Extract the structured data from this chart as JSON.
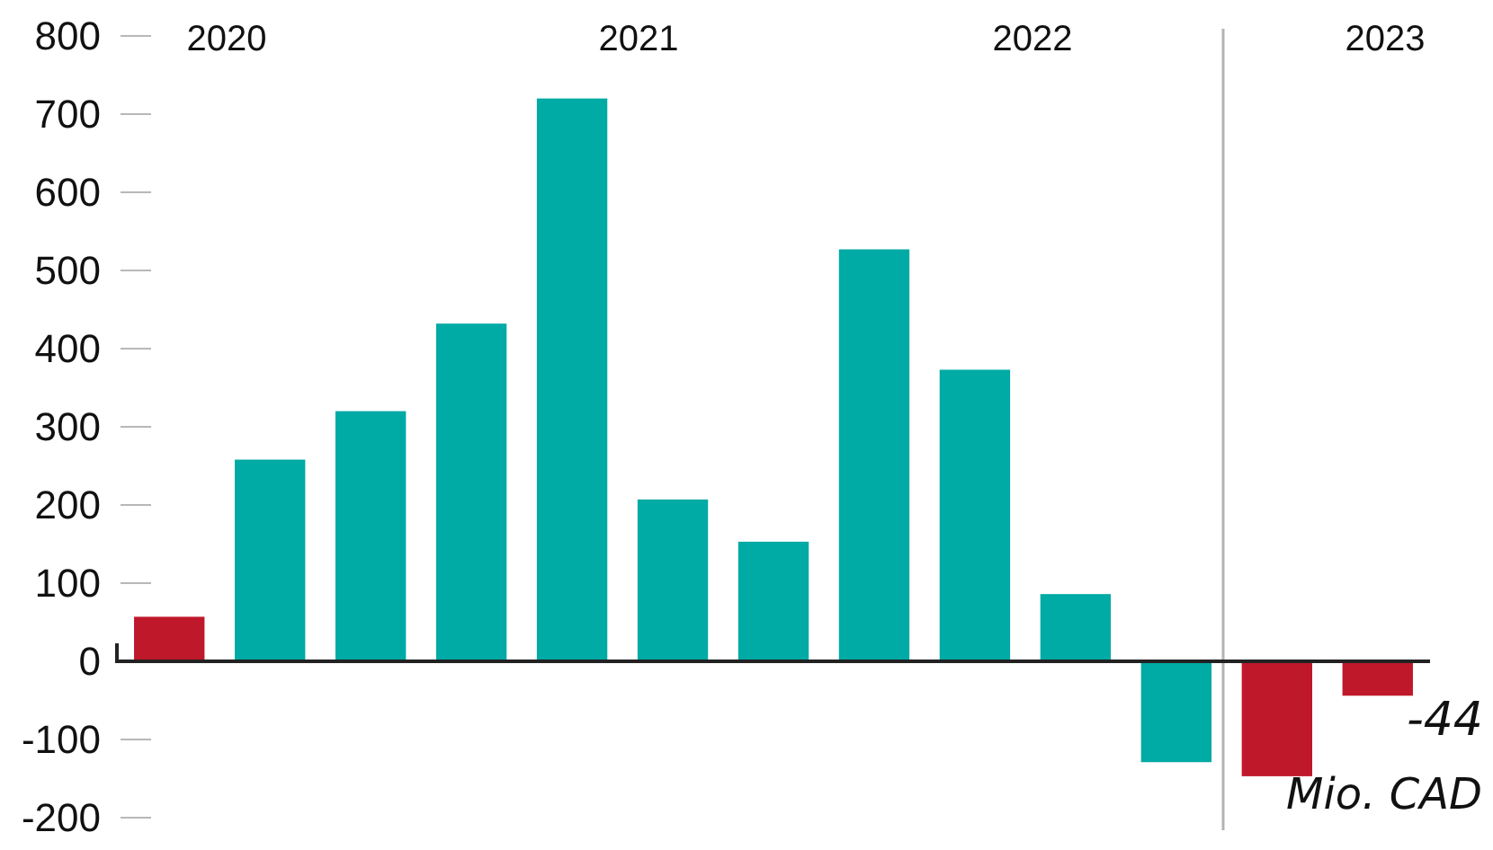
{
  "chart_data": {
    "type": "bar",
    "categories": [
      null,
      null,
      null,
      null,
      null,
      null,
      null,
      null,
      null,
      null,
      null,
      null,
      null
    ],
    "values": [
      57,
      258,
      320,
      432,
      720,
      207,
      153,
      527,
      373,
      86,
      -129,
      -147,
      -44
    ],
    "colors": [
      "#c0182b",
      "#00aaa5",
      "#00aaa5",
      "#00aaa5",
      "#00aaa5",
      "#00aaa5",
      "#00aaa5",
      "#00aaa5",
      "#00aaa5",
      "#00aaa5",
      "#00aaa5",
      "#c0182b",
      "#c0182b"
    ],
    "value_labels": [
      null,
      null,
      null,
      null,
      null,
      null,
      null,
      null,
      null,
      null,
      null,
      null,
      "-44"
    ],
    "ylim": [
      -200,
      800
    ],
    "yticks": [
      -200,
      -100,
      0,
      100,
      200,
      300,
      400,
      500,
      600,
      700,
      800
    ],
    "annotations": [
      "2020",
      "2021",
      "2022",
      "2023",
      "Mio. CAD"
    ]
  }
}
